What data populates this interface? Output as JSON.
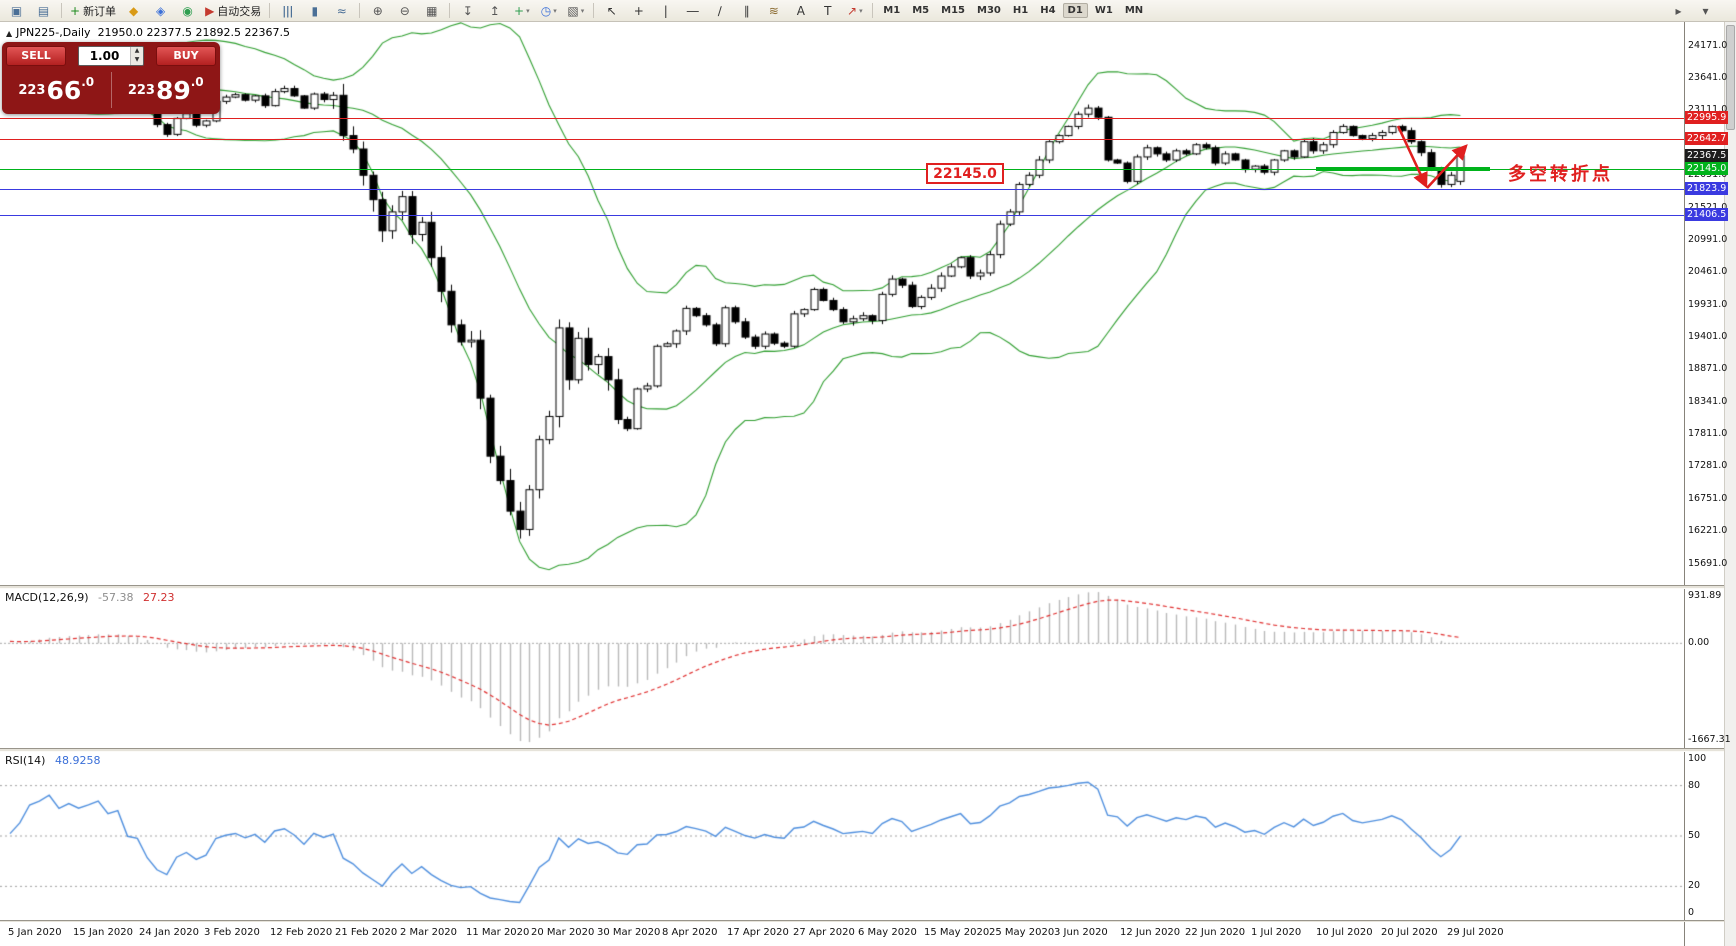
{
  "toolbar": {
    "groups": [
      [
        {
          "name": "new-chart-button",
          "glyph": "▣",
          "color": "#4a6f96"
        },
        {
          "name": "profiles-button",
          "glyph": "▤",
          "color": "#4a6f96"
        }
      ],
      [
        {
          "name": "new-order-button",
          "glyph": "+",
          "color": "#1d8a1d",
          "label": "新订单"
        },
        {
          "name": "market-watch-button",
          "glyph": "◆",
          "color": "#d99a16"
        },
        {
          "name": "data-window-button",
          "glyph": "◈",
          "color": "#3a6fd8"
        },
        {
          "name": "navigator-button",
          "glyph": "◉",
          "color": "#2e9e4f"
        },
        {
          "name": "auto-trading-button",
          "glyph": "▶",
          "color": "#c43a2f",
          "label": "自动交易"
        }
      ],
      [
        {
          "name": "bar-chart-button",
          "glyph": "ǀǀǀ",
          "color": "#4a6f96"
        },
        {
          "name": "candlestick-chart-button",
          "glyph": "▮",
          "color": "#4a6f96"
        },
        {
          "name": "line-chart-button",
          "glyph": "≈",
          "color": "#4a6f96"
        }
      ],
      [
        {
          "name": "zoom-in-button",
          "glyph": "⊕",
          "color": "#555555"
        },
        {
          "name": "zoom-out-button",
          "glyph": "⊖",
          "color": "#555555"
        },
        {
          "name": "tile-windows-button",
          "glyph": "▦",
          "color": "#555555"
        }
      ],
      [
        {
          "name": "indicators-button",
          "glyph": "↧",
          "color": "#555555"
        },
        {
          "name": "objects-list-button",
          "glyph": "↥",
          "color": "#555555"
        },
        {
          "name": "add-indicator-button",
          "glyph": "+",
          "color": "#2e9e4f",
          "dropdown": true
        },
        {
          "name": "periods-button",
          "glyph": "◷",
          "color": "#3a6fd8",
          "dropdown": true
        },
        {
          "name": "templates-button",
          "glyph": "▧",
          "color": "#555555",
          "dropdown": true
        }
      ],
      [
        {
          "name": "cursor-button",
          "glyph": "↖",
          "color": "#333333"
        },
        {
          "name": "crosshair-button",
          "glyph": "+",
          "color": "#333333"
        },
        {
          "name": "vertical-line-button",
          "glyph": "|",
          "color": "#333333"
        },
        {
          "name": "horizontal-line-button",
          "glyph": "―",
          "color": "#333333"
        },
        {
          "name": "trendline-button",
          "glyph": "∕",
          "color": "#333333"
        },
        {
          "name": "channel-button",
          "glyph": "∥",
          "color": "#333333"
        },
        {
          "name": "fibonacci-button",
          "glyph": "≋",
          "color": "#8a6a2f"
        },
        {
          "name": "text-button",
          "glyph": "A",
          "color": "#333333"
        },
        {
          "name": "text-label-button",
          "glyph": "T",
          "color": "#333333"
        },
        {
          "name": "arrows-button",
          "glyph": "↗",
          "color": "#c43a2f",
          "dropdown": true
        }
      ]
    ],
    "timeframes": [
      "M1",
      "M5",
      "M15",
      "M30",
      "H1",
      "H4",
      "D1",
      "W1",
      "MN"
    ],
    "active_timeframe": "D1",
    "right_items": [
      {
        "name": "chart-scroll-toggle-button",
        "glyph": "▸"
      },
      {
        "name": "chart-shift-toggle-button",
        "glyph": "▾"
      }
    ]
  },
  "trade_panel": {
    "sell_label": "SELL",
    "buy_label": "BUY",
    "volume": "1.00",
    "sell_price": "22366.0",
    "buy_price": "22389.0"
  },
  "chart": {
    "symbol": "JPN225-,Daily",
    "ohlc_line": "21950.0 22377.5 21892.5 22367.5",
    "price_axis_labels": [
      "24171.0",
      "23641.0",
      "23111.0",
      "22581.0",
      "22051.0",
      "21521.0",
      "20991.0",
      "20461.0",
      "19931.0",
      "19401.0",
      "18871.0",
      "18341.0",
      "17811.0",
      "17281.0",
      "16751.0",
      "16221.0",
      "15691.0"
    ],
    "hlines": [
      {
        "price": 22995.9,
        "label": "22995.9",
        "type": "red"
      },
      {
        "price": 22642.7,
        "label": "22642.7",
        "type": "red"
      },
      {
        "price": 22145.0,
        "label": "22145.0",
        "type": "green"
      },
      {
        "price": 21823.9,
        "label": "21823.9",
        "type": "blue"
      },
      {
        "price": 21406.5,
        "label": "21406.5",
        "type": "blue"
      }
    ],
    "current_price_label": "22367.5",
    "annotations": {
      "price_box": "22145.0",
      "turning_point": "多空转折点"
    }
  },
  "indicators": {
    "macd": {
      "title": "MACD(12,26,9)",
      "value_main": "-57.38",
      "value_signal": "27.23",
      "axis": [
        "931.89",
        "0.00",
        "-1667.31"
      ]
    },
    "rsi": {
      "title": "RSI(14)",
      "value": "48.9258",
      "axis": [
        "100",
        "80",
        "50",
        "20",
        "0"
      ],
      "levels": [
        80,
        50,
        20
      ]
    }
  },
  "chart_data": {
    "type": "candlestick",
    "symbol": "JPN225-",
    "timeframe": "Daily",
    "price_top": 24560,
    "price_bottom": 15340,
    "bollinger_period": 20,
    "bollinger_deviation": 2,
    "last_bar_ohlc": [
      21950.0,
      22377.5,
      21892.5,
      22367.5
    ],
    "date_labels": [
      "5 Jan 2020",
      "15 Jan 2020",
      "24 Jan 2020",
      "3 Feb 2020",
      "12 Feb 2020",
      "21 Feb 2020",
      "2 Mar 2020",
      "11 Mar 2020",
      "20 Mar 2020",
      "30 Mar 2020",
      "8 Apr 2020",
      "17 Apr 2020",
      "27 Apr 2020",
      "6 May 2020",
      "15 May 2020",
      "25 May 2020",
      "3 Jun 2020",
      "12 Jun 2020",
      "22 Jun 2020",
      "1 Jul 2020",
      "10 Jul 2020",
      "20 Jul 2020",
      "29 Jul 2020"
    ],
    "pre_closes": [
      22950,
      23000,
      22920,
      23050,
      23120,
      23080,
      23160,
      23220,
      23150,
      23100,
      23180,
      23250,
      23300,
      23280,
      23350,
      23400,
      23380,
      23320,
      23360,
      23420,
      23380,
      23440,
      23460,
      23400,
      23350,
      23420,
      23480,
      23520,
      23460,
      23400,
      23440,
      23380,
      23300,
      23350,
      23280,
      23320,
      23360,
      23300,
      23260,
      23300
    ],
    "closes": [
      23320,
      23420,
      23660,
      23730,
      23850,
      23740,
      23830,
      23790,
      23850,
      23920,
      23810,
      23860,
      23570,
      23540,
      23200,
      22880,
      22720,
      22980,
      23060,
      22870,
      22940,
      23260,
      23330,
      23370,
      23280,
      23350,
      23190,
      23420,
      23470,
      23350,
      23150,
      23380,
      23290,
      23360,
      22700,
      22480,
      22050,
      21650,
      21140,
      21450,
      21700,
      21080,
      21280,
      20700,
      20150,
      19600,
      19320,
      19350,
      18400,
      17450,
      17050,
      16550,
      16250,
      16900,
      17720,
      18100,
      19550,
      18700,
      19380,
      18950,
      19080,
      18700,
      18050,
      17900,
      18550,
      18600,
      19250,
      19290,
      19500,
      19870,
      19750,
      19600,
      19290,
      19880,
      19650,
      19400,
      19250,
      19450,
      19300,
      19250,
      19780,
      19850,
      20180,
      20000,
      19850,
      19650,
      19700,
      19750,
      19670,
      20100,
      20350,
      20250,
      19900,
      20050,
      20200,
      20400,
      20550,
      20700,
      20400,
      20450,
      20750,
      21250,
      21450,
      21900,
      22050,
      22300,
      22600,
      22700,
      22850,
      23050,
      23150,
      23000,
      22300,
      22250,
      21950,
      22350,
      22500,
      22400,
      22300,
      22450,
      22400,
      22550,
      22500,
      22250,
      22400,
      22300,
      22150,
      22200,
      22100,
      22300,
      22450,
      22350,
      22600,
      22450,
      22550,
      22750,
      22850,
      22700,
      22650,
      22700,
      22750,
      22850,
      22780,
      22600,
      22420,
      22150,
      21900,
      22050,
      22367.5
    ]
  },
  "colors": {
    "bollinger": "#2f9e2f",
    "hline_red": "#e02020",
    "hline_green": "#00b31b",
    "hline_blue": "#3a3ae0",
    "current_badge": "#1c1c1c",
    "macd_histogram": "#b9b9b9",
    "macd_signal": "#e03030",
    "rsi_line": "#4f8fde",
    "bull_body": "#ffffff",
    "bear_body": "#000000"
  }
}
